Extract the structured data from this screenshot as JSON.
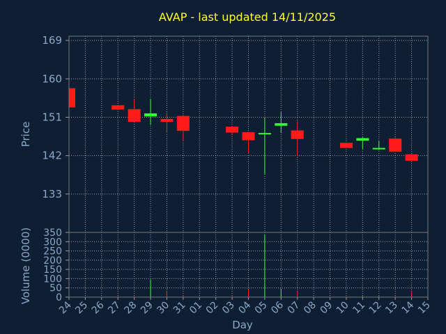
{
  "chart_data": [
    {
      "type": "candlestick",
      "title": "AVAP - last updated 14/11/2025",
      "xlabel": "Day",
      "ylabel": "Price",
      "ylim": [
        124,
        170
      ],
      "yticks": [
        133,
        142,
        151,
        160,
        169
      ],
      "grid": true,
      "categories": [
        "24",
        "25",
        "26",
        "27",
        "28",
        "29",
        "30",
        "31",
        "01",
        "02",
        "03",
        "04",
        "05",
        "06",
        "07",
        "08",
        "09",
        "10",
        "11",
        "12",
        "13",
        "14",
        "15"
      ],
      "candles": [
        {
          "day": "24",
          "open": 157.8,
          "close": 153.3,
          "high": 157.8,
          "low": 153.3,
          "up": false
        },
        {
          "day": "27",
          "open": 153.8,
          "close": 152.8,
          "high": 153.8,
          "low": 152.8,
          "up": false
        },
        {
          "day": "28",
          "open": 152.9,
          "close": 149.9,
          "high": 155.2,
          "low": 149.9,
          "up": false
        },
        {
          "day": "29",
          "open": 151.2,
          "close": 151.9,
          "high": 155.3,
          "low": 149.2,
          "up": true
        },
        {
          "day": "30",
          "open": 150.6,
          "close": 149.9,
          "high": 152.1,
          "low": 147.3,
          "up": false
        },
        {
          "day": "31",
          "open": 151.3,
          "close": 147.8,
          "high": 151.5,
          "low": 145.3,
          "up": false
        },
        {
          "day": "03",
          "open": 148.8,
          "close": 147.4,
          "high": 149.0,
          "low": 146.7,
          "up": false
        },
        {
          "day": "04",
          "open": 147.5,
          "close": 145.6,
          "high": 147.6,
          "low": 142.5,
          "up": false
        },
        {
          "day": "05",
          "open": 147.0,
          "close": 147.3,
          "high": 150.9,
          "low": 137.7,
          "up": true
        },
        {
          "day": "06",
          "open": 149.0,
          "close": 149.6,
          "high": 152.2,
          "low": 147.3,
          "up": true
        },
        {
          "day": "07",
          "open": 147.9,
          "close": 145.9,
          "high": 150.1,
          "low": 141.8,
          "up": false
        },
        {
          "day": "10",
          "open": 145.0,
          "close": 143.8,
          "high": 145.0,
          "low": 143.8,
          "up": false
        },
        {
          "day": "11",
          "open": 145.5,
          "close": 146.1,
          "high": 146.3,
          "low": 143.6,
          "up": true
        },
        {
          "day": "12",
          "open": 143.6,
          "close": 143.8,
          "high": 145.4,
          "low": 143.3,
          "up": true
        },
        {
          "day": "13",
          "open": 146.0,
          "close": 142.9,
          "high": 146.2,
          "low": 142.9,
          "up": false
        },
        {
          "day": "14",
          "open": 142.3,
          "close": 140.8,
          "high": 142.4,
          "low": 140.8,
          "up": false
        }
      ],
      "colors": {
        "up": "#33ff33",
        "down": "#ff1a1a"
      }
    },
    {
      "type": "bar",
      "xlabel": "Day",
      "ylabel": "Volume (0000)",
      "ylim": [
        0,
        350
      ],
      "yticks": [
        0,
        50,
        100,
        150,
        200,
        250,
        300,
        350
      ],
      "grid": true,
      "categories": [
        "24",
        "25",
        "26",
        "27",
        "28",
        "29",
        "30",
        "31",
        "01",
        "02",
        "03",
        "04",
        "05",
        "06",
        "07",
        "08",
        "09",
        "10",
        "11",
        "12",
        "13",
        "14",
        "15"
      ],
      "bars": [
        {
          "day": "24",
          "value": 2,
          "up": false
        },
        {
          "day": "27",
          "value": 5,
          "up": false
        },
        {
          "day": "28",
          "value": 5,
          "up": false
        },
        {
          "day": "29",
          "value": 95,
          "up": true
        },
        {
          "day": "30",
          "value": 35,
          "up": false
        },
        {
          "day": "31",
          "value": 10,
          "up": false
        },
        {
          "day": "03",
          "value": 5,
          "up": false
        },
        {
          "day": "04",
          "value": 40,
          "up": false
        },
        {
          "day": "05",
          "value": 340,
          "up": true
        },
        {
          "day": "06",
          "value": 45,
          "up": true
        },
        {
          "day": "07",
          "value": 30,
          "up": false
        },
        {
          "day": "10",
          "value": 3,
          "up": false
        },
        {
          "day": "11",
          "value": 5,
          "up": true
        },
        {
          "day": "12",
          "value": 5,
          "up": true
        },
        {
          "day": "13",
          "value": 5,
          "up": false
        },
        {
          "day": "14",
          "value": 30,
          "up": false
        }
      ]
    }
  ]
}
